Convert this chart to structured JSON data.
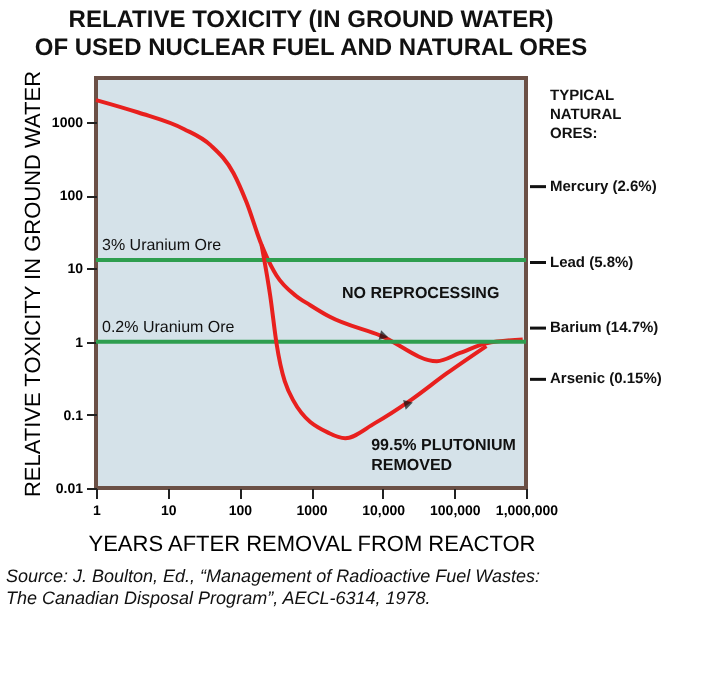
{
  "chart_data": {
    "type": "line",
    "title": [
      "RELATIVE TOXICITY (IN GROUND WATER)",
      "OF USED NUCLEAR FUEL AND NATURAL ORES"
    ],
    "xlabel": "YEARS AFTER REMOVAL FROM REACTOR",
    "ylabel": "RELATIVE TOXICITY IN GROUND WATER",
    "log": "xy",
    "marker": "none",
    "line_style": "solid",
    "xlim": [
      1,
      1000000
    ],
    "xticks": [
      1,
      10,
      100,
      1000,
      {
        "value": 10000,
        "label": "10,000"
      },
      {
        "value": 100000,
        "label": "100,000"
      },
      {
        "value": 1000000,
        "label": "1,000,000"
      }
    ],
    "ylim": [
      0.01,
      4000
    ],
    "yticks": [
      0.01,
      0.1,
      1,
      10,
      100,
      1000
    ],
    "series": [
      {
        "color": "#e8201e",
        "x": [
          1,
          3.9,
          17,
          40,
          83,
          126,
          204,
          330,
          620,
          950,
          1800,
          9500,
          57000,
          120000,
          280000,
          900000
        ],
        "values": [
          2000,
          1350,
          800,
          480,
          200,
          80,
          21,
          8,
          4.2,
          3.2,
          2.2,
          1.2,
          0.54,
          0.7,
          0.95,
          1.07
        ]
      },
      {
        "color": "#e8201e",
        "x": [
          204,
          270,
          330,
          560,
          1800,
          3000,
          7800,
          25000,
          79000,
          280000
        ],
        "values": [
          21,
          4.2,
          0.95,
          0.16,
          0.056,
          0.048,
          0.077,
          0.16,
          0.37,
          0.87
        ]
      }
    ],
    "ref_lines": [
      {
        "axis": "y",
        "value": 13,
        "label": "3% Uranium Ore",
        "color": "#2e9e4f"
      },
      {
        "axis": "y",
        "value": 1,
        "label": "0.2% Uranium Ore",
        "color": "#2e9e4f"
      }
    ],
    "annotations": [
      {
        "text": "NO REPROCESSING",
        "x": 10000,
        "y": 1.2
      },
      {
        "text": "99.5% PLUTONIUM\nREMOVED",
        "x": 22000,
        "y": 0.14
      },
      "Mercury (2.6%)",
      "Lead (5.8%)",
      "Barium (14.7%)",
      "Arsenic (0.15%)",
      "TYPICAL NATURAL ORES:",
      "Source: J. Boulton, Ed., “Management of Radioactive Fuel Wastes:\nThe Canadian Disposal Program”, AECL-6314, 1978."
    ]
  }
}
